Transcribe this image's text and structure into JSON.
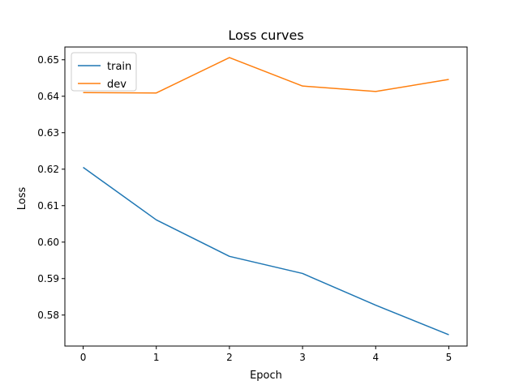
{
  "chart_data": {
    "type": "line",
    "title": "Loss curves",
    "xlabel": "Epoch",
    "ylabel": "Loss",
    "x": [
      0,
      1,
      2,
      3,
      4,
      5
    ],
    "xlim": [
      -0.25,
      5.25
    ],
    "ylim": [
      0.5715,
      0.6535
    ],
    "xticks": [
      "0",
      "1",
      "2",
      "3",
      "4",
      "5"
    ],
    "yticks": [
      "0.58",
      "0.59",
      "0.60",
      "0.61",
      "0.62",
      "0.63",
      "0.64",
      "0.65"
    ],
    "yticks_values": [
      0.58,
      0.59,
      0.6,
      0.61,
      0.62,
      0.63,
      0.64,
      0.65
    ],
    "grid": false,
    "legend_position": "top-left",
    "series": [
      {
        "name": "train",
        "color": "#1f77b4",
        "values": [
          0.6205,
          0.6061,
          0.5961,
          0.5914,
          0.5827,
          0.5746
        ]
      },
      {
        "name": "dev",
        "color": "#ff7f0e",
        "values": [
          0.641,
          0.6409,
          0.6506,
          0.6428,
          0.6413,
          0.6446
        ]
      }
    ]
  }
}
